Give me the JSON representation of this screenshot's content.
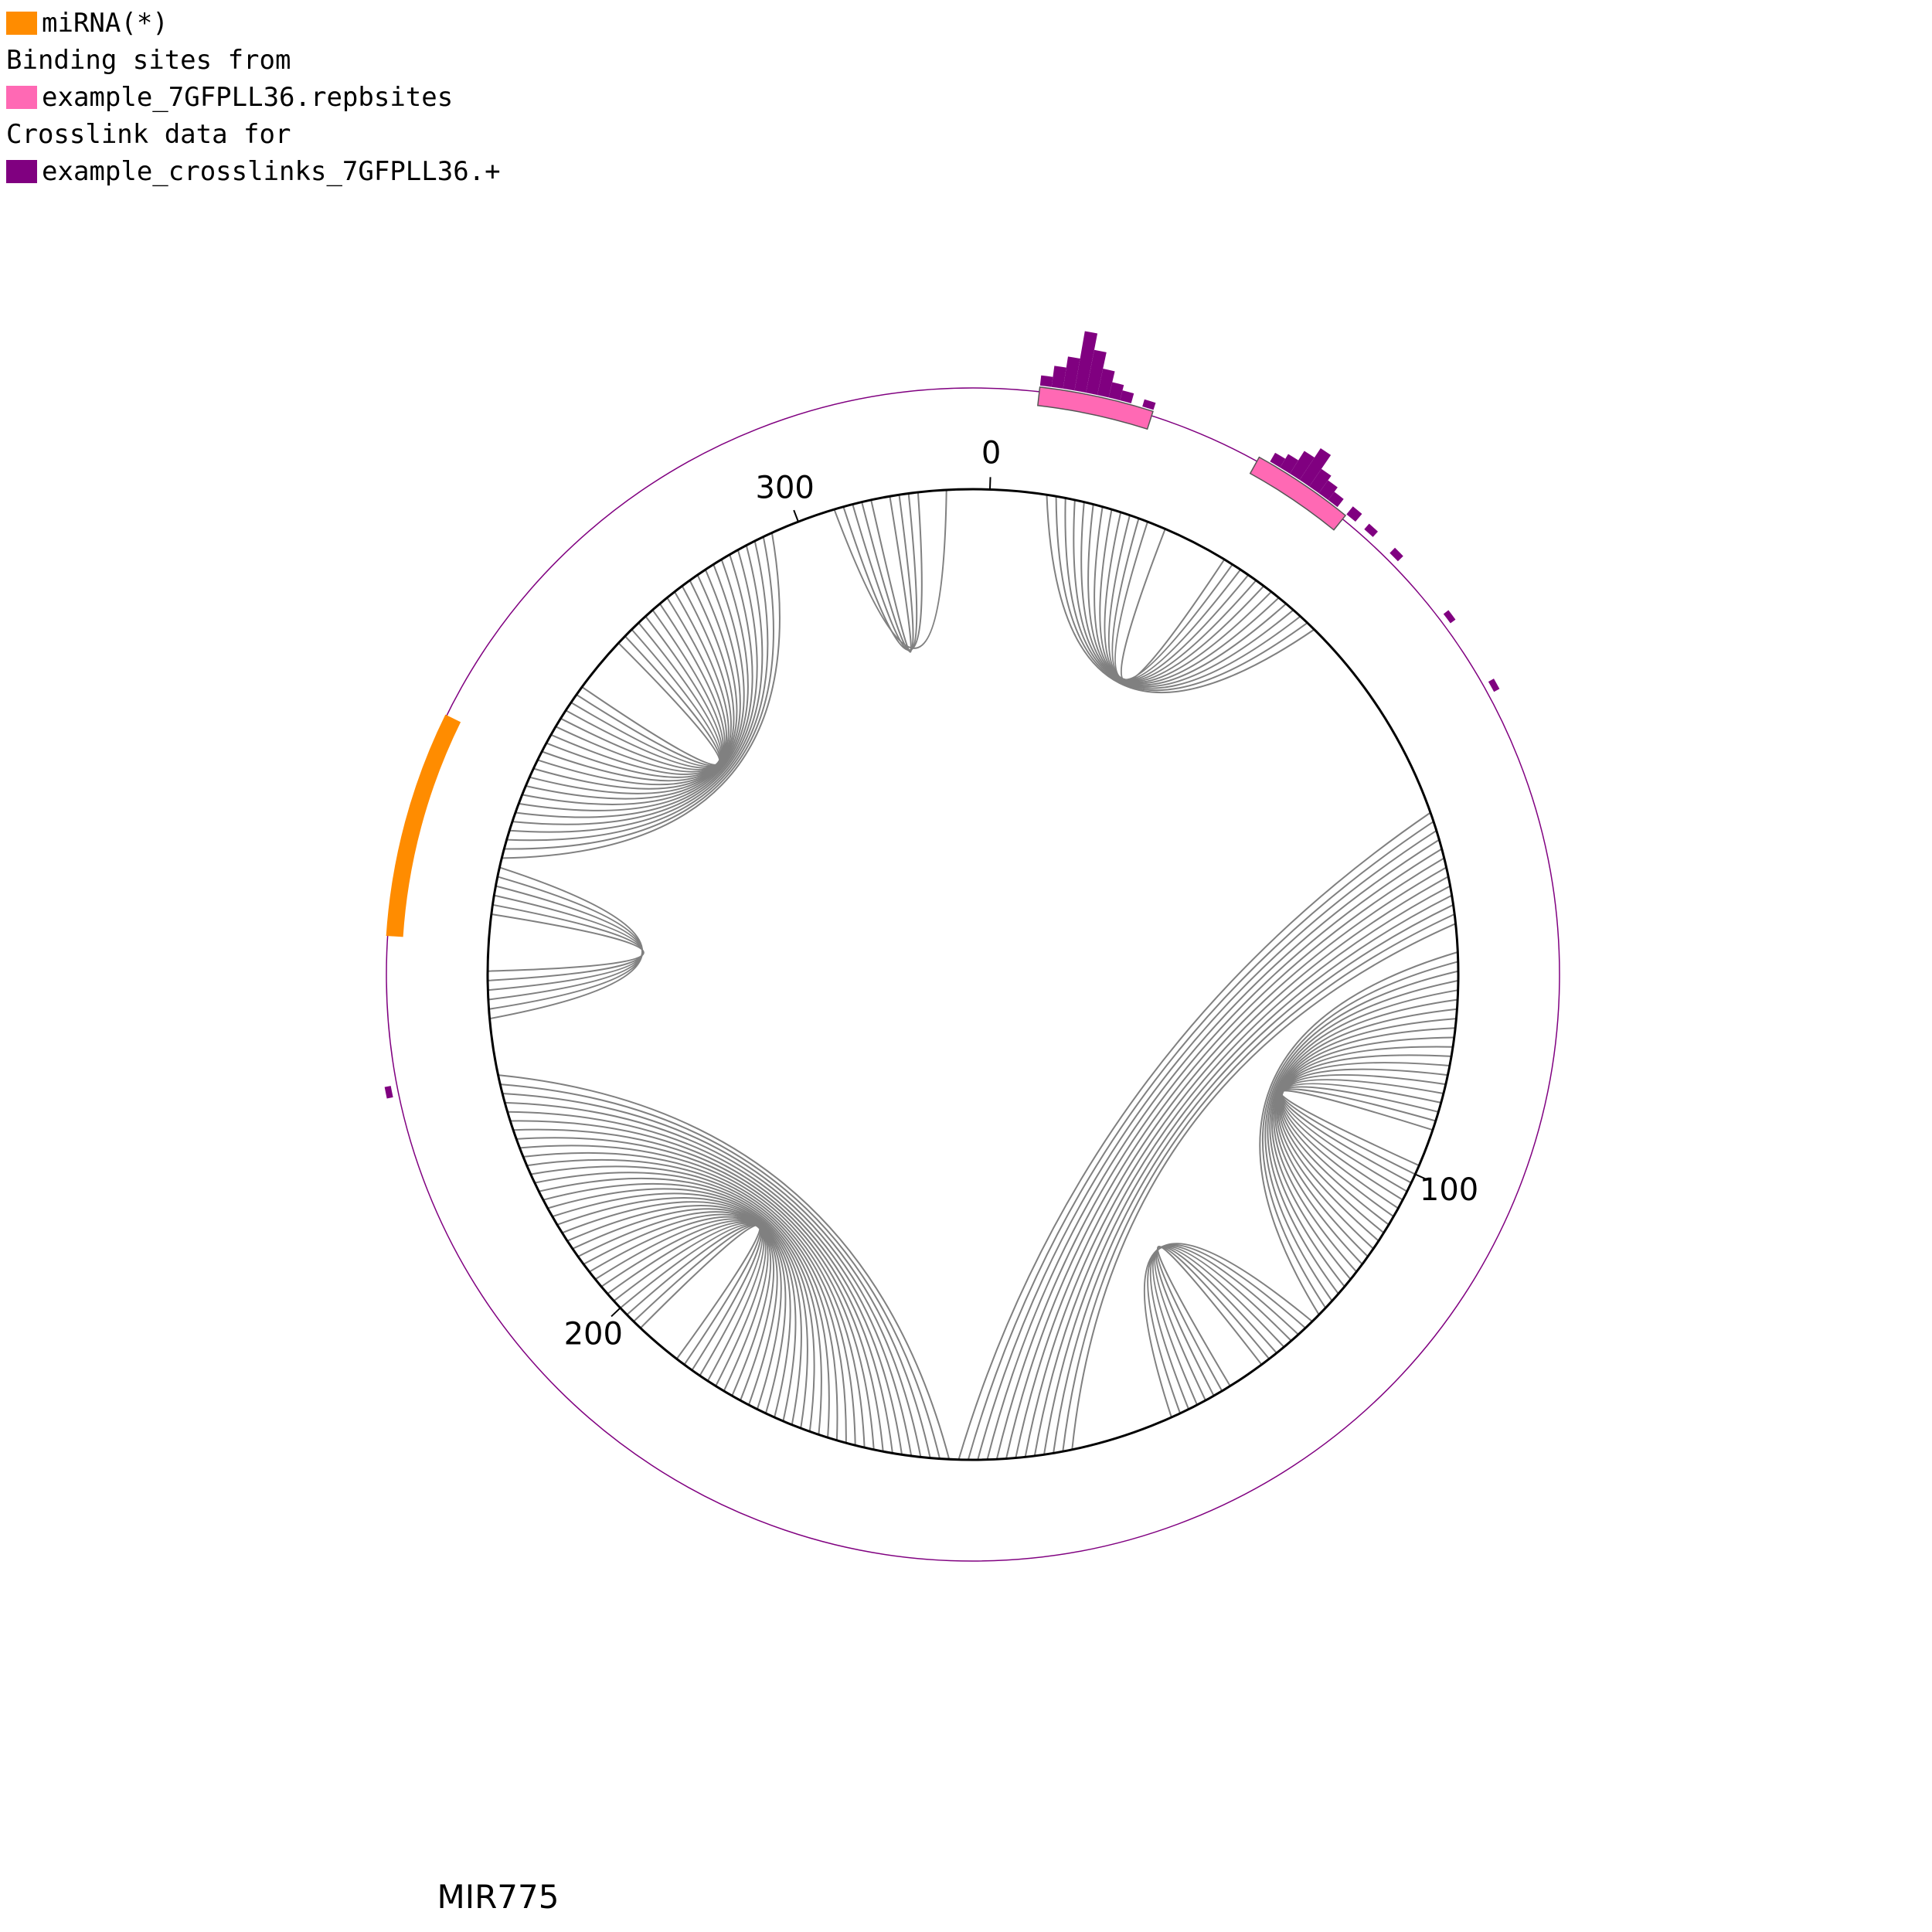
{
  "legend": {
    "mirna_label": "miRNA(*)",
    "binding_header": "Binding sites from",
    "binding_label": "example_7GFPLL36.repbsites",
    "crosslink_header": "Crosslink data for",
    "crosslink_label": "example_crosslinks_7GFPLL36.+"
  },
  "colors": {
    "mirna": "#FF8C00",
    "binding_site": "#FF69B4",
    "crosslink": "#800080",
    "arc": "#808080",
    "circle": "#000000"
  },
  "gene_name": "MIR775",
  "sequence_length": 317,
  "tick_labels": [
    "0",
    "100",
    "200",
    "300"
  ],
  "tick_positions": [
    0,
    100,
    200,
    300
  ],
  "mirna_region": {
    "start": 242,
    "end": 262
  },
  "binding_sites": [
    {
      "start": 4,
      "end": 14
    },
    {
      "start": 24,
      "end": 33
    }
  ],
  "crosslinks": [
    {
      "pos": 4,
      "count": 1
    },
    {
      "pos": 5,
      "count": 3
    },
    {
      "pos": 6,
      "count": 5
    },
    {
      "pos": 7,
      "count": 10
    },
    {
      "pos": 8,
      "count": 7
    },
    {
      "pos": 9,
      "count": 4
    },
    {
      "pos": 10,
      "count": 2
    },
    {
      "pos": 11,
      "count": 1
    },
    {
      "pos": 13,
      "count": 0.5
    },
    {
      "pos": 25,
      "count": 1
    },
    {
      "pos": 26,
      "count": 2
    },
    {
      "pos": 27,
      "count": 4
    },
    {
      "pos": 28,
      "count": 6
    },
    {
      "pos": 29,
      "count": 3
    },
    {
      "pos": 30,
      "count": 2
    },
    {
      "pos": 31,
      "count": 1
    },
    {
      "pos": 33,
      "count": 1
    },
    {
      "pos": 35,
      "count": 0.5
    },
    {
      "pos": 38,
      "count": 0.5
    },
    {
      "pos": 45,
      "count": 0.3
    },
    {
      "pos": 52,
      "count": 0.3
    },
    {
      "pos": 228,
      "count": 0.3
    }
  ],
  "base_pairs": [
    [
      6,
      38
    ],
    [
      7,
      37
    ],
    [
      8,
      36
    ],
    [
      9,
      35
    ],
    [
      10,
      34
    ],
    [
      11,
      33
    ],
    [
      12,
      32
    ],
    [
      13,
      31
    ],
    [
      14,
      30
    ],
    [
      15,
      29
    ],
    [
      16,
      28
    ],
    [
      17,
      27
    ],
    [
      19,
      26
    ],
    [
      61,
      160
    ],
    [
      62,
      159
    ],
    [
      63,
      158
    ],
    [
      64,
      157
    ],
    [
      65,
      156
    ],
    [
      66,
      155
    ],
    [
      67,
      154
    ],
    [
      68,
      153
    ],
    [
      69,
      152
    ],
    [
      70,
      151
    ],
    [
      71,
      150
    ],
    [
      72,
      149
    ],
    [
      73,
      148
    ],
    [
      76,
      118
    ],
    [
      77,
      117
    ],
    [
      78,
      116
    ],
    [
      79,
      115
    ],
    [
      80,
      114
    ],
    [
      81,
      113
    ],
    [
      82,
      112
    ],
    [
      83,
      111
    ],
    [
      84,
      110
    ],
    [
      85,
      109
    ],
    [
      86,
      108
    ],
    [
      87,
      107
    ],
    [
      88,
      106
    ],
    [
      89,
      105
    ],
    [
      90,
      104
    ],
    [
      91,
      103
    ],
    [
      92,
      102
    ],
    [
      93,
      101
    ],
    [
      94,
      100
    ],
    [
      95,
      99
    ],
    [
      119,
      137
    ],
    [
      120,
      136
    ],
    [
      121,
      135
    ],
    [
      122,
      134
    ],
    [
      123,
      133
    ],
    [
      124,
      132
    ],
    [
      125,
      131
    ],
    [
      126,
      130
    ],
    [
      161,
      228
    ],
    [
      162,
      227
    ],
    [
      163,
      226
    ],
    [
      164,
      225
    ],
    [
      165,
      224
    ],
    [
      166,
      223
    ],
    [
      167,
      222
    ],
    [
      168,
      221
    ],
    [
      169,
      220
    ],
    [
      170,
      219
    ],
    [
      171,
      218
    ],
    [
      172,
      217
    ],
    [
      173,
      216
    ],
    [
      174,
      215
    ],
    [
      175,
      214
    ],
    [
      176,
      213
    ],
    [
      177,
      212
    ],
    [
      178,
      211
    ],
    [
      179,
      210
    ],
    [
      180,
      209
    ],
    [
      181,
      208
    ],
    [
      182,
      207
    ],
    [
      183,
      206
    ],
    [
      184,
      205
    ],
    [
      185,
      204
    ],
    [
      186,
      203
    ],
    [
      187,
      202
    ],
    [
      188,
      201
    ],
    [
      189,
      200
    ],
    [
      190,
      199
    ],
    [
      191,
      198
    ],
    [
      192,
      197
    ],
    [
      234,
      250
    ],
    [
      235,
      249
    ],
    [
      236,
      248
    ],
    [
      237,
      247
    ],
    [
      238,
      246
    ],
    [
      239,
      245
    ],
    [
      259,
      289
    ],
    [
      260,
      288
    ],
    [
      261,
      287
    ],
    [
      262,
      286
    ],
    [
      263,
      285
    ],
    [
      264,
      284
    ],
    [
      265,
      283
    ],
    [
      266,
      282
    ],
    [
      267,
      281
    ],
    [
      268,
      280
    ],
    [
      269,
      279
    ],
    [
      270,
      278
    ],
    [
      271,
      277
    ],
    [
      258,
      290
    ],
    [
      257,
      291
    ],
    [
      256,
      292
    ],
    [
      255,
      293
    ],
    [
      254,
      294
    ],
    [
      253,
      295
    ],
    [
      252,
      296
    ],
    [
      251,
      297
    ],
    [
      300,
      320
    ],
    [
      301,
      319
    ],
    [
      302,
      318
    ],
    [
      303,
      317
    ],
    [
      304,
      316
    ],
    [
      305,
      313
    ],
    [
      306,
      312
    ],
    [
      307,
      311
    ],
    [
      308,
      310
    ]
  ]
}
